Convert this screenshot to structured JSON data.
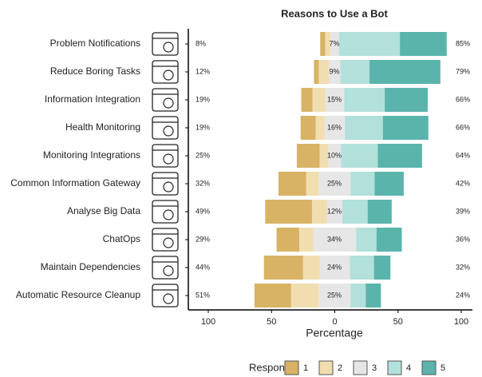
{
  "chart_data": {
    "type": "diverging_bar",
    "title": "Reasons to Use a Bot",
    "x_label": "Percentage",
    "legend_title": "Response",
    "categories": [
      "Problem Notifications",
      "Reduce Boring Tasks",
      "Information Integration",
      "Health Monitoring",
      "Monitoring Integrations",
      "Common Information Gateway",
      "Analyse Big Data",
      "ChatOps",
      "Maintain Dependencies",
      "Automatic Resource Cleanup"
    ],
    "series": [
      {
        "name": "1",
        "color": "#d8b365",
        "values": [
          4,
          4,
          9,
          12,
          18,
          22,
          37,
          18,
          31,
          29
        ]
      },
      {
        "name": "2",
        "color": "#f0deb1",
        "values": [
          4,
          8,
          10,
          7,
          7,
          10,
          12,
          11,
          13,
          22
        ]
      },
      {
        "name": "3",
        "color": "#e6e6e6",
        "values": [
          7,
          9,
          15,
          16,
          10,
          25,
          12,
          34,
          24,
          25
        ]
      },
      {
        "name": "4",
        "color": "#b2e0da",
        "values": [
          48,
          23,
          32,
          30,
          29,
          19,
          20,
          16,
          19,
          12
        ]
      },
      {
        "name": "5",
        "color": "#5ab4ac",
        "values": [
          37,
          56,
          34,
          36,
          35,
          23,
          19,
          20,
          13,
          12
        ]
      }
    ],
    "left_labels": [
      "8%",
      "12%",
      "19%",
      "19%",
      "25%",
      "32%",
      "49%",
      "29%",
      "44%",
      "51%"
    ],
    "neutral_labels": [
      "7%",
      "9%",
      "15%",
      "16%",
      "10%",
      "25%",
      "12%",
      "34%",
      "24%",
      "25%"
    ],
    "right_labels": [
      "85%",
      "79%",
      "66%",
      "66%",
      "64%",
      "42%",
      "39%",
      "36%",
      "32%",
      "24%"
    ],
    "xlim": [
      -100,
      100
    ],
    "xticks": [
      {
        "value": -100,
        "label": "100"
      },
      {
        "value": -50,
        "label": "50"
      },
      0,
      50,
      100
    ]
  }
}
